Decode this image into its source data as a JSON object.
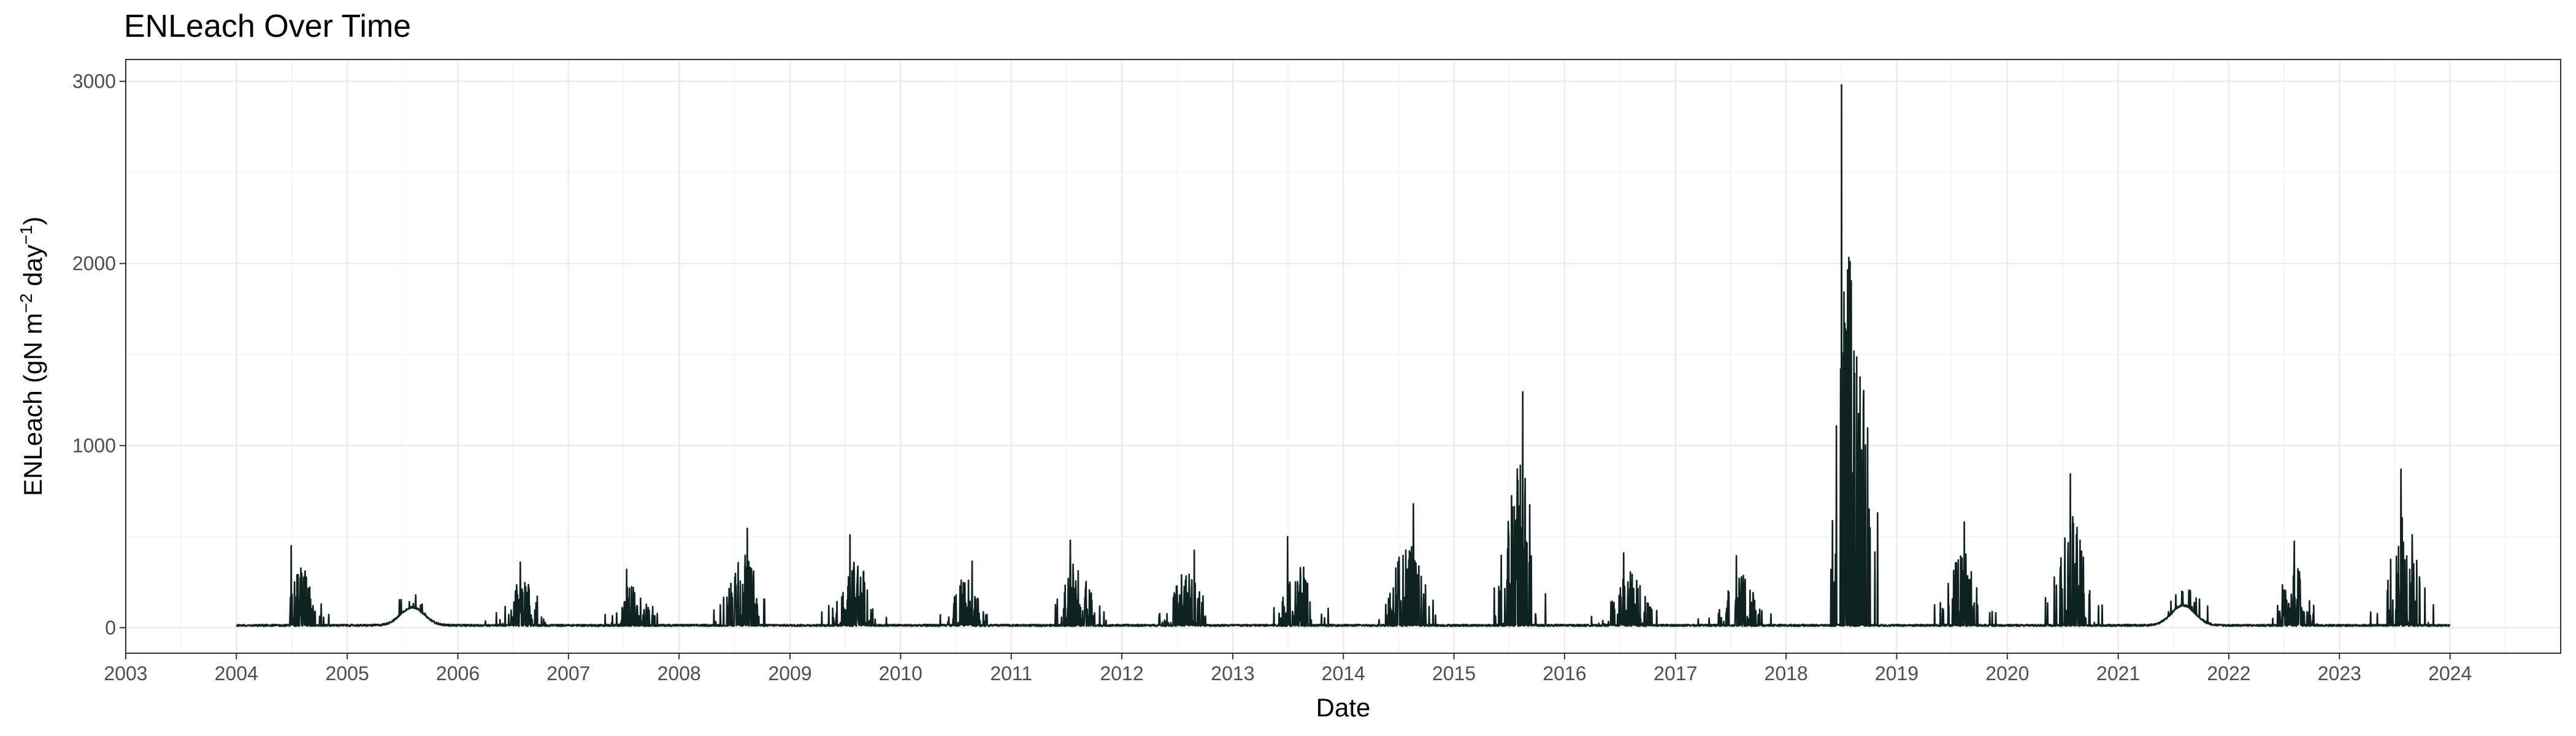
{
  "chart_data": {
    "type": "line",
    "title": "ENLeach Over Time",
    "xlabel": "Date",
    "ylabel": "ENLeach (gN m",
    "ylabel_sup1": "−2",
    "ylabel_mid": " day",
    "ylabel_sup2": "−1",
    "ylabel_end": ")",
    "xlim": [
      "2003-01-01",
      "2024-12-31"
    ],
    "ylim": [
      -140,
      3120
    ],
    "x_ticks": [
      "2003",
      "2004",
      "2005",
      "2006",
      "2007",
      "2008",
      "2009",
      "2010",
      "2011",
      "2012",
      "2013",
      "2014",
      "2015",
      "2016",
      "2017",
      "2018",
      "2019",
      "2020",
      "2021",
      "2022",
      "2023",
      "2024"
    ],
    "y_ticks": [
      0,
      1000,
      2000,
      3000
    ],
    "y_tick_labels": [
      "0",
      "1000",
      "2000",
      "3000"
    ],
    "grid": true,
    "series": [
      {
        "color": "#0f2222",
        "x_start": "2004-01-01",
        "x_end": "2024-01-01",
        "annual_peaks": [
          {
            "year": 2004,
            "value": 450
          },
          {
            "year": 2005,
            "value": 180
          },
          {
            "year": 2006,
            "value": 360
          },
          {
            "year": 2007,
            "value": 320
          },
          {
            "year": 2008,
            "value": 545
          },
          {
            "year": 2009,
            "value": 510
          },
          {
            "year": 2010,
            "value": 365
          },
          {
            "year": 2011,
            "value": 480
          },
          {
            "year": 2012,
            "value": 425
          },
          {
            "year": 2013,
            "value": 500
          },
          {
            "year": 2014,
            "value": 680
          },
          {
            "year": 2015,
            "value": 1295
          },
          {
            "year": 2016,
            "value": 410
          },
          {
            "year": 2017,
            "value": 395
          },
          {
            "year": 2018,
            "value": 2980
          },
          {
            "year": 2019,
            "value": 580
          },
          {
            "year": 2020,
            "value": 845
          },
          {
            "year": 2021,
            "value": 200
          },
          {
            "year": 2022,
            "value": 475
          },
          {
            "year": 2023,
            "value": 870
          }
        ]
      }
    ]
  }
}
